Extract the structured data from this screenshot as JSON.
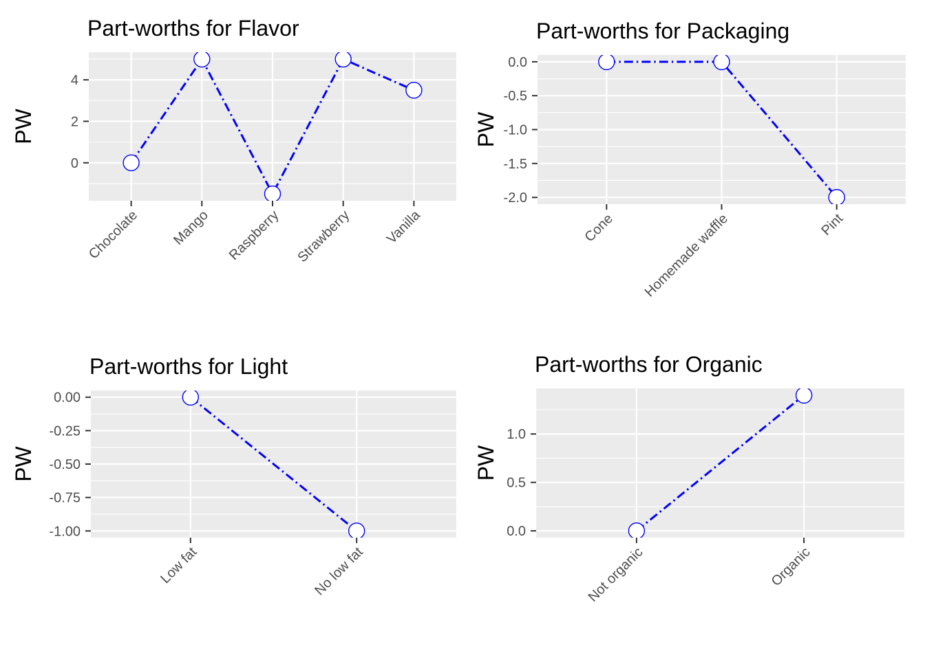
{
  "figure": {
    "rows": 2,
    "cols": 2,
    "background": "#ffffff"
  },
  "palette": {
    "line_blue": "#0000ff",
    "marker_fill": "#ffffff",
    "panel_grey": "#ebebeb",
    "grid_white": "#ffffff",
    "axis_text_grey": "#4d4d4d",
    "tick_mark_grey": "#333333",
    "title_black": "#000000"
  },
  "chart_data": [
    {
      "type": "line",
      "title": "Part-worths for Flavor",
      "ylabel": "PW",
      "xlabel": "",
      "categories": [
        "Chocolate",
        "Mango",
        "Raspberry",
        "Strawberry",
        "Vanilla"
      ],
      "values": [
        0,
        5,
        -1.5,
        5,
        3.5
      ],
      "ylim": [
        -1.83,
        5.33
      ],
      "y_ticks": [
        0,
        2,
        4
      ],
      "y_tick_labels": [
        "0",
        "2",
        "4"
      ],
      "y_minor": [
        -1,
        1,
        3,
        5
      ],
      "grid": true,
      "legend": "none",
      "line_style": "dotdash",
      "marker": "open-circle"
    },
    {
      "type": "line",
      "title": "Part-worths for Packaging",
      "ylabel": "PW",
      "xlabel": "",
      "categories": [
        "Cone",
        "Homemade waffle",
        "Pint"
      ],
      "values": [
        0,
        0,
        -2
      ],
      "ylim": [
        -2.1,
        0.1
      ],
      "y_ticks": [
        0,
        -0.5,
        -1,
        -1.5,
        -2
      ],
      "y_tick_labels": [
        "0.0",
        "-0.5",
        "-1.0",
        "-1.5",
        "-2.0"
      ],
      "y_minor": [
        -0.25,
        -0.75,
        -1.25,
        -1.75
      ],
      "grid": true,
      "legend": "none",
      "line_style": "dotdash",
      "marker": "open-circle"
    },
    {
      "type": "line",
      "title": "Part-worths for Light",
      "ylabel": "PW",
      "xlabel": "",
      "categories": [
        "Low fat",
        "No low fat"
      ],
      "values": [
        0,
        -1
      ],
      "ylim": [
        -1.05,
        0.05
      ],
      "y_ticks": [
        0,
        -0.25,
        -0.5,
        -0.75,
        -1
      ],
      "y_tick_labels": [
        "0.00",
        "-0.25",
        "-0.50",
        "-0.75",
        "-1.00"
      ],
      "y_minor": [
        -0.125,
        -0.375,
        -0.625,
        -0.875
      ],
      "grid": true,
      "legend": "none",
      "line_style": "dotdash",
      "marker": "open-circle"
    },
    {
      "type": "line",
      "title": "Part-worths for Organic",
      "ylabel": "PW",
      "xlabel": "",
      "categories": [
        "Not organic",
        "Organic"
      ],
      "values": [
        0,
        1.4
      ],
      "ylim": [
        -0.07,
        1.47
      ],
      "y_ticks": [
        0,
        0.5,
        1
      ],
      "y_tick_labels": [
        "0.0",
        "0.5",
        "1.0"
      ],
      "y_minor": [
        0.25,
        0.75,
        1.25
      ],
      "grid": true,
      "legend": "none",
      "line_style": "dotdash",
      "marker": "open-circle"
    }
  ]
}
